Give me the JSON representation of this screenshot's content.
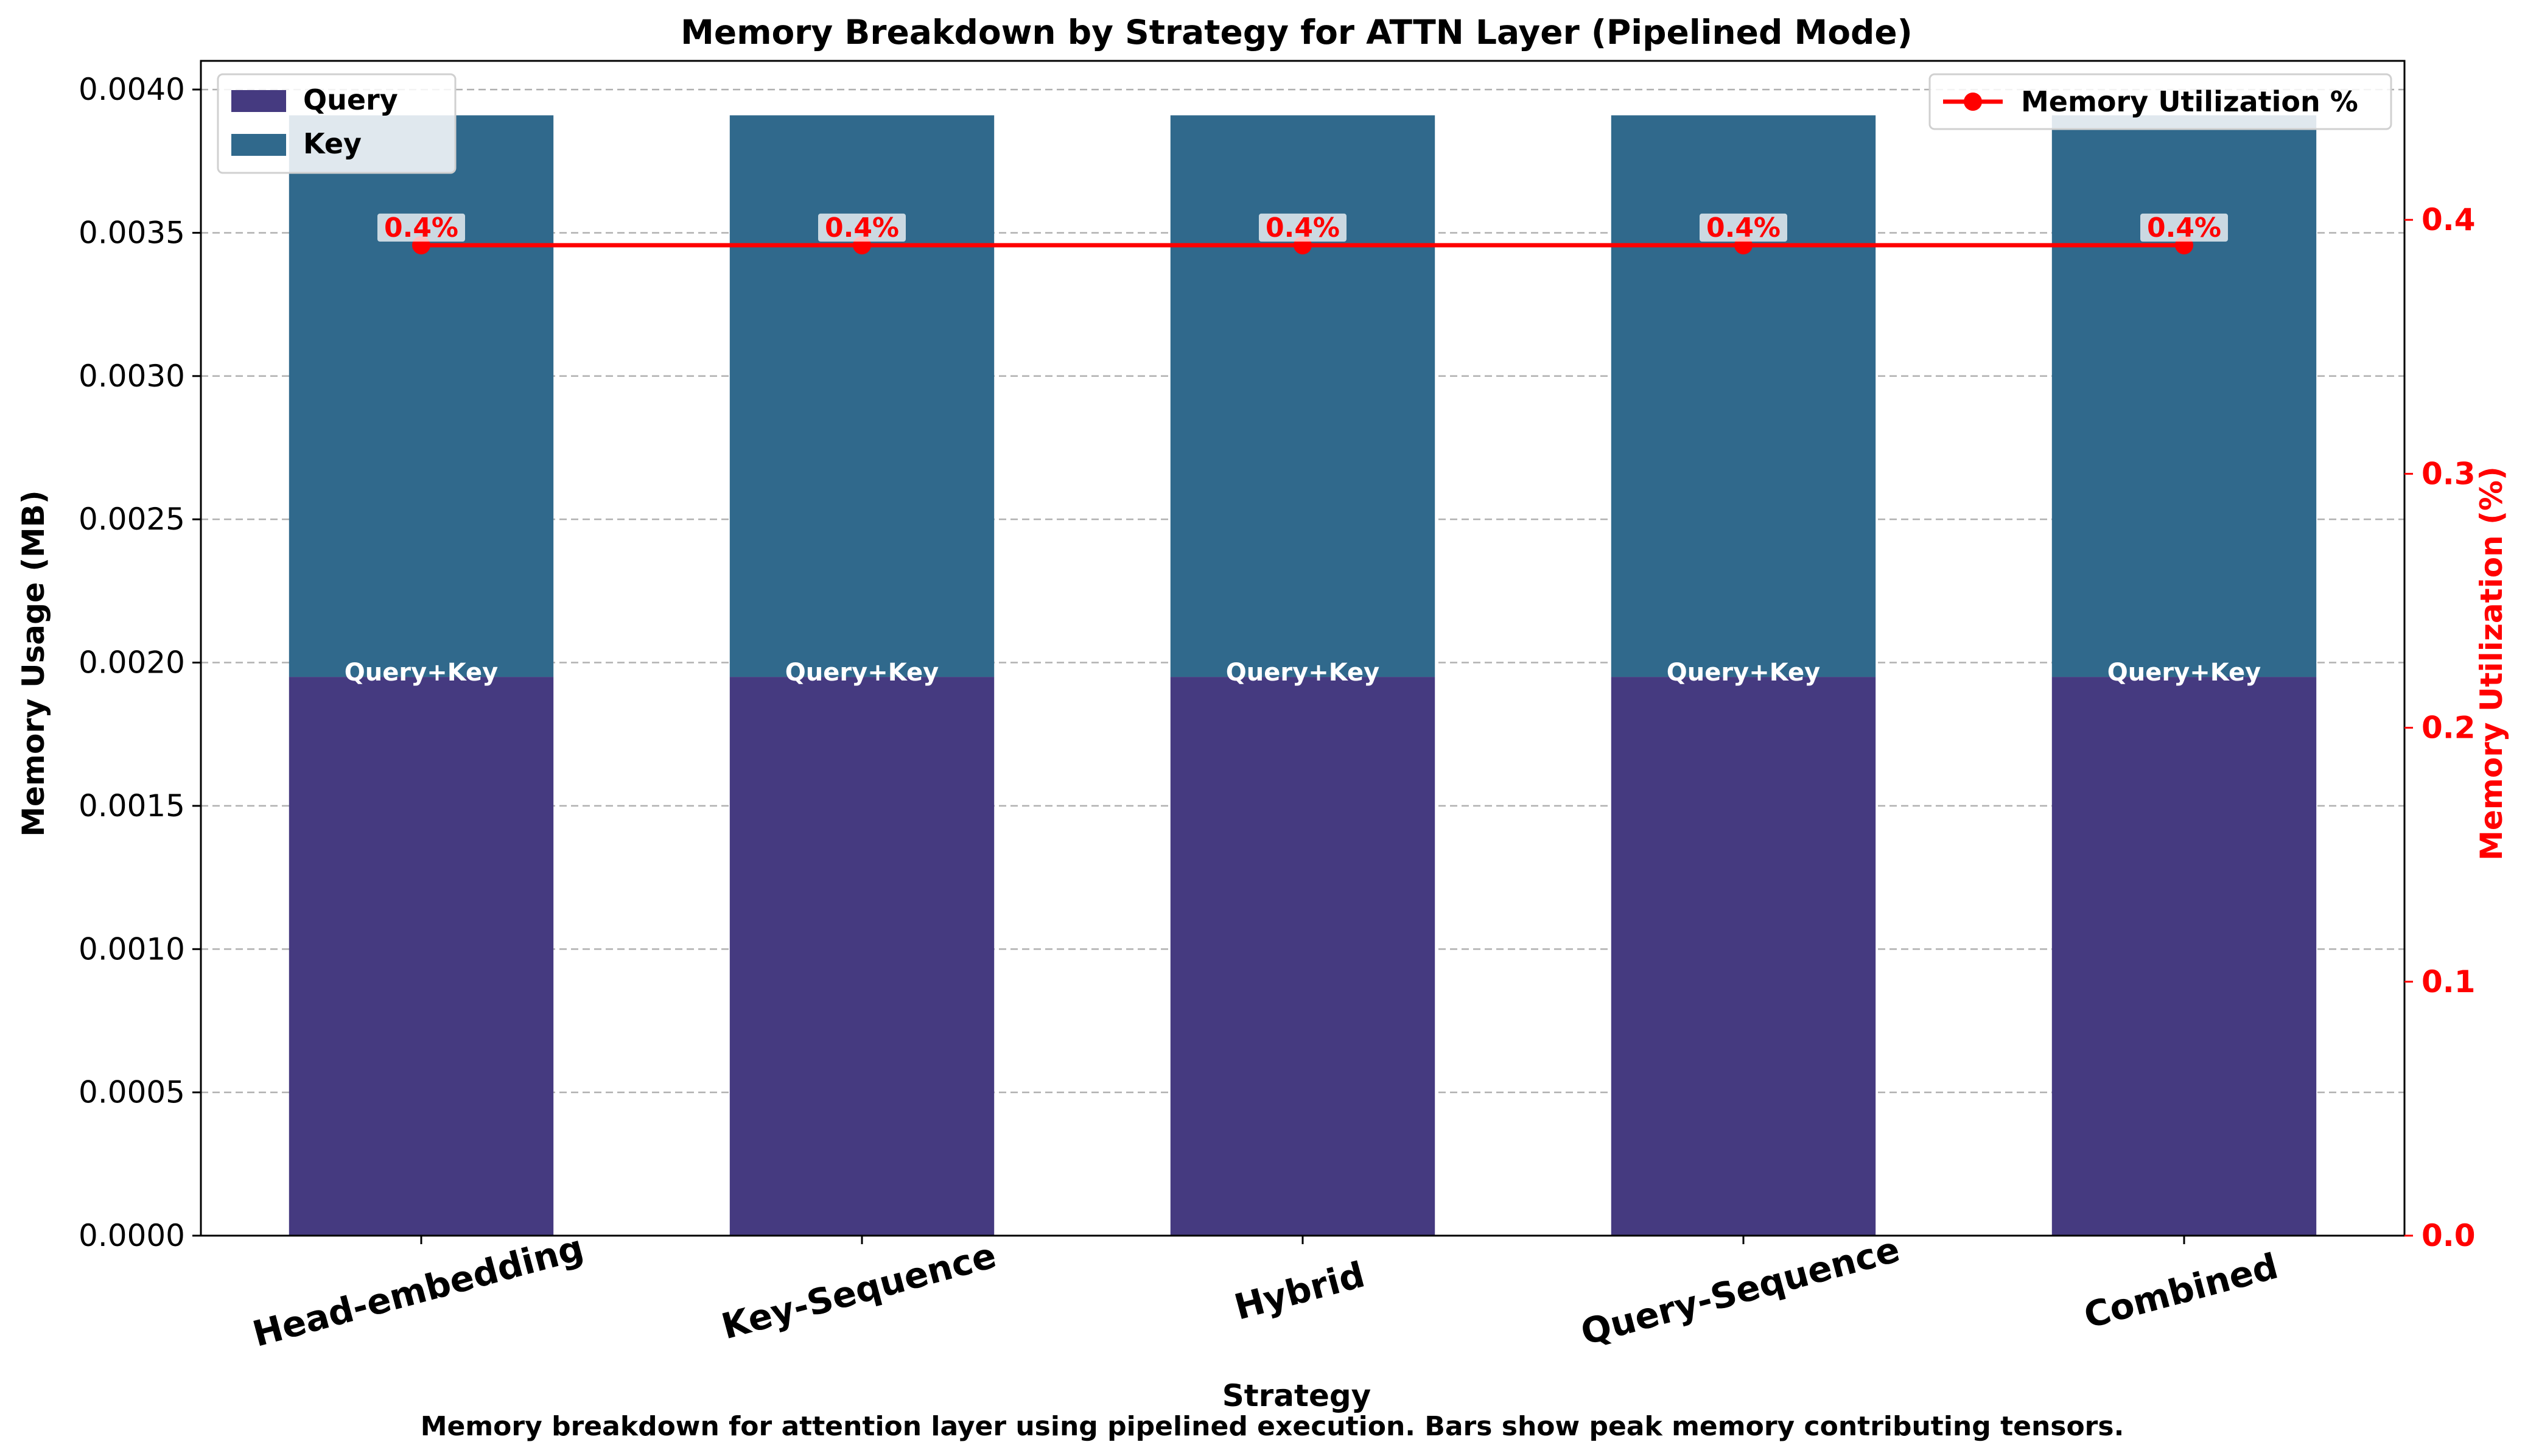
{
  "chart_data": {
    "type": "bar",
    "title": "Memory Breakdown by Strategy for ATTN Layer (Pipelined Mode)",
    "xlabel": "Strategy",
    "ylabel": "Memory Usage (MB)",
    "y2label": "Memory Utilization (%)",
    "caption": "Memory breakdown for attention layer using pipelined execution. Bars show peak memory contributing tensors.",
    "categories": [
      "Head-embedding",
      "Key-Sequence",
      "Hybrid",
      "Query-Sequence",
      "Combined"
    ],
    "stacked": true,
    "series": [
      {
        "name": "Query",
        "values": [
          0.00195,
          0.00195,
          0.00195,
          0.00195,
          0.00195
        ],
        "color": "#453a80"
      },
      {
        "name": "Key",
        "values": [
          0.00196,
          0.00196,
          0.00196,
          0.00196,
          0.00196
        ],
        "color": "#30698c"
      }
    ],
    "bar_labels": [
      "Query+Key",
      "Query+Key",
      "Query+Key",
      "Query+Key",
      "Query+Key"
    ],
    "line_series": {
      "name": "Memory Utilization %",
      "axis": "right",
      "values": [
        0.39,
        0.39,
        0.39,
        0.39,
        0.39
      ],
      "labels": [
        "0.4%",
        "0.4%",
        "0.4%",
        "0.4%",
        "0.4%"
      ],
      "color": "#ff0000"
    },
    "ylim": [
      0,
      0.0041
    ],
    "y2lim": [
      0,
      0.4626
    ],
    "yticks": [
      "0.0000",
      "0.0005",
      "0.0010",
      "0.0015",
      "0.0020",
      "0.0025",
      "0.0030",
      "0.0035",
      "0.0040"
    ],
    "y2ticks": [
      "0.0",
      "0.1",
      "0.2",
      "0.3",
      "0.4"
    ],
    "grid": "horizontal dashed",
    "legend_left": "top-left",
    "legend_right": "top-right"
  }
}
